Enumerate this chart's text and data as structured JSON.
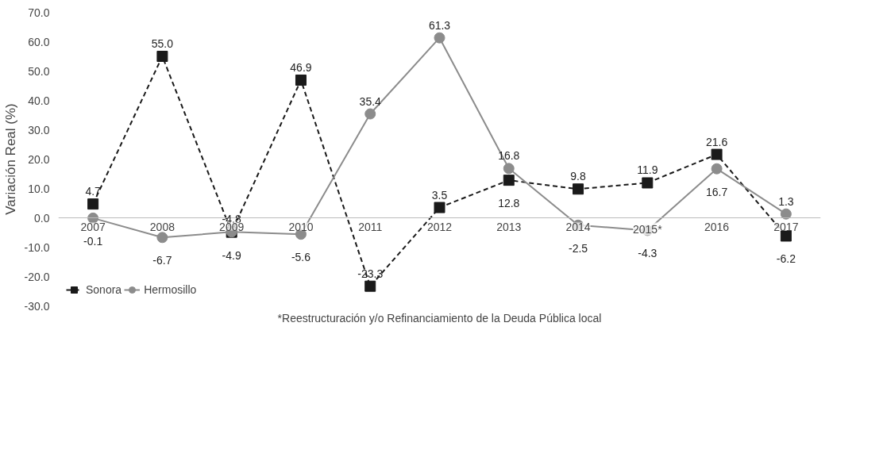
{
  "chart_data": {
    "type": "line",
    "ylabel": "Variación Real (%)",
    "categories": [
      "2007",
      "2008",
      "2009",
      "2010",
      "2011",
      "2012",
      "2013",
      "2014",
      "2015*",
      "2016",
      "2017"
    ],
    "series": [
      {
        "name": "Sonora",
        "color": "#1a1a1a",
        "marker": "square",
        "line_style": "dashed",
        "values": [
          4.7,
          55.0,
          -4.9,
          46.9,
          -23.3,
          3.5,
          12.8,
          9.8,
          11.9,
          21.6,
          -6.2
        ],
        "value_labels": [
          "4.7",
          "55.0",
          "-4.9",
          "46.9",
          "-23.3",
          "3.5",
          "12.8",
          "9.8",
          "11.9",
          "21.6",
          "-6.2"
        ]
      },
      {
        "name": "Hermosillo",
        "color": "#8c8c8c",
        "marker": "circle",
        "line_style": "solid",
        "values": [
          -0.1,
          -6.7,
          -4.8,
          -5.6,
          35.4,
          61.3,
          16.8,
          -2.5,
          -4.3,
          16.7,
          1.3
        ],
        "value_labels": [
          "-0.1",
          "-6.7",
          "-4.8",
          "-5.6",
          "35.4",
          "61.3",
          "16.8",
          "-2.5",
          "-4.3",
          "16.7",
          "1.3"
        ]
      }
    ],
    "ylim": [
      -30,
      70
    ],
    "yticks": [
      {
        "value": -30,
        "label": "-30.0"
      },
      {
        "value": -20,
        "label": "-20.0"
      },
      {
        "value": -10,
        "label": "-10.0"
      },
      {
        "value": 0,
        "label": "0.0"
      },
      {
        "value": 10,
        "label": "10.0"
      },
      {
        "value": 20,
        "label": "20.0"
      },
      {
        "value": 30,
        "label": "30.0"
      },
      {
        "value": 40,
        "label": "40.0"
      },
      {
        "value": 50,
        "label": "50.0"
      },
      {
        "value": 60,
        "label": "60.0"
      },
      {
        "value": 70,
        "label": "70.0"
      }
    ],
    "grid": false,
    "legend": "bottom left",
    "annotations": [
      "*Reestructuración y/o Refinanciamiento de la Deuda Pública local"
    ]
  }
}
